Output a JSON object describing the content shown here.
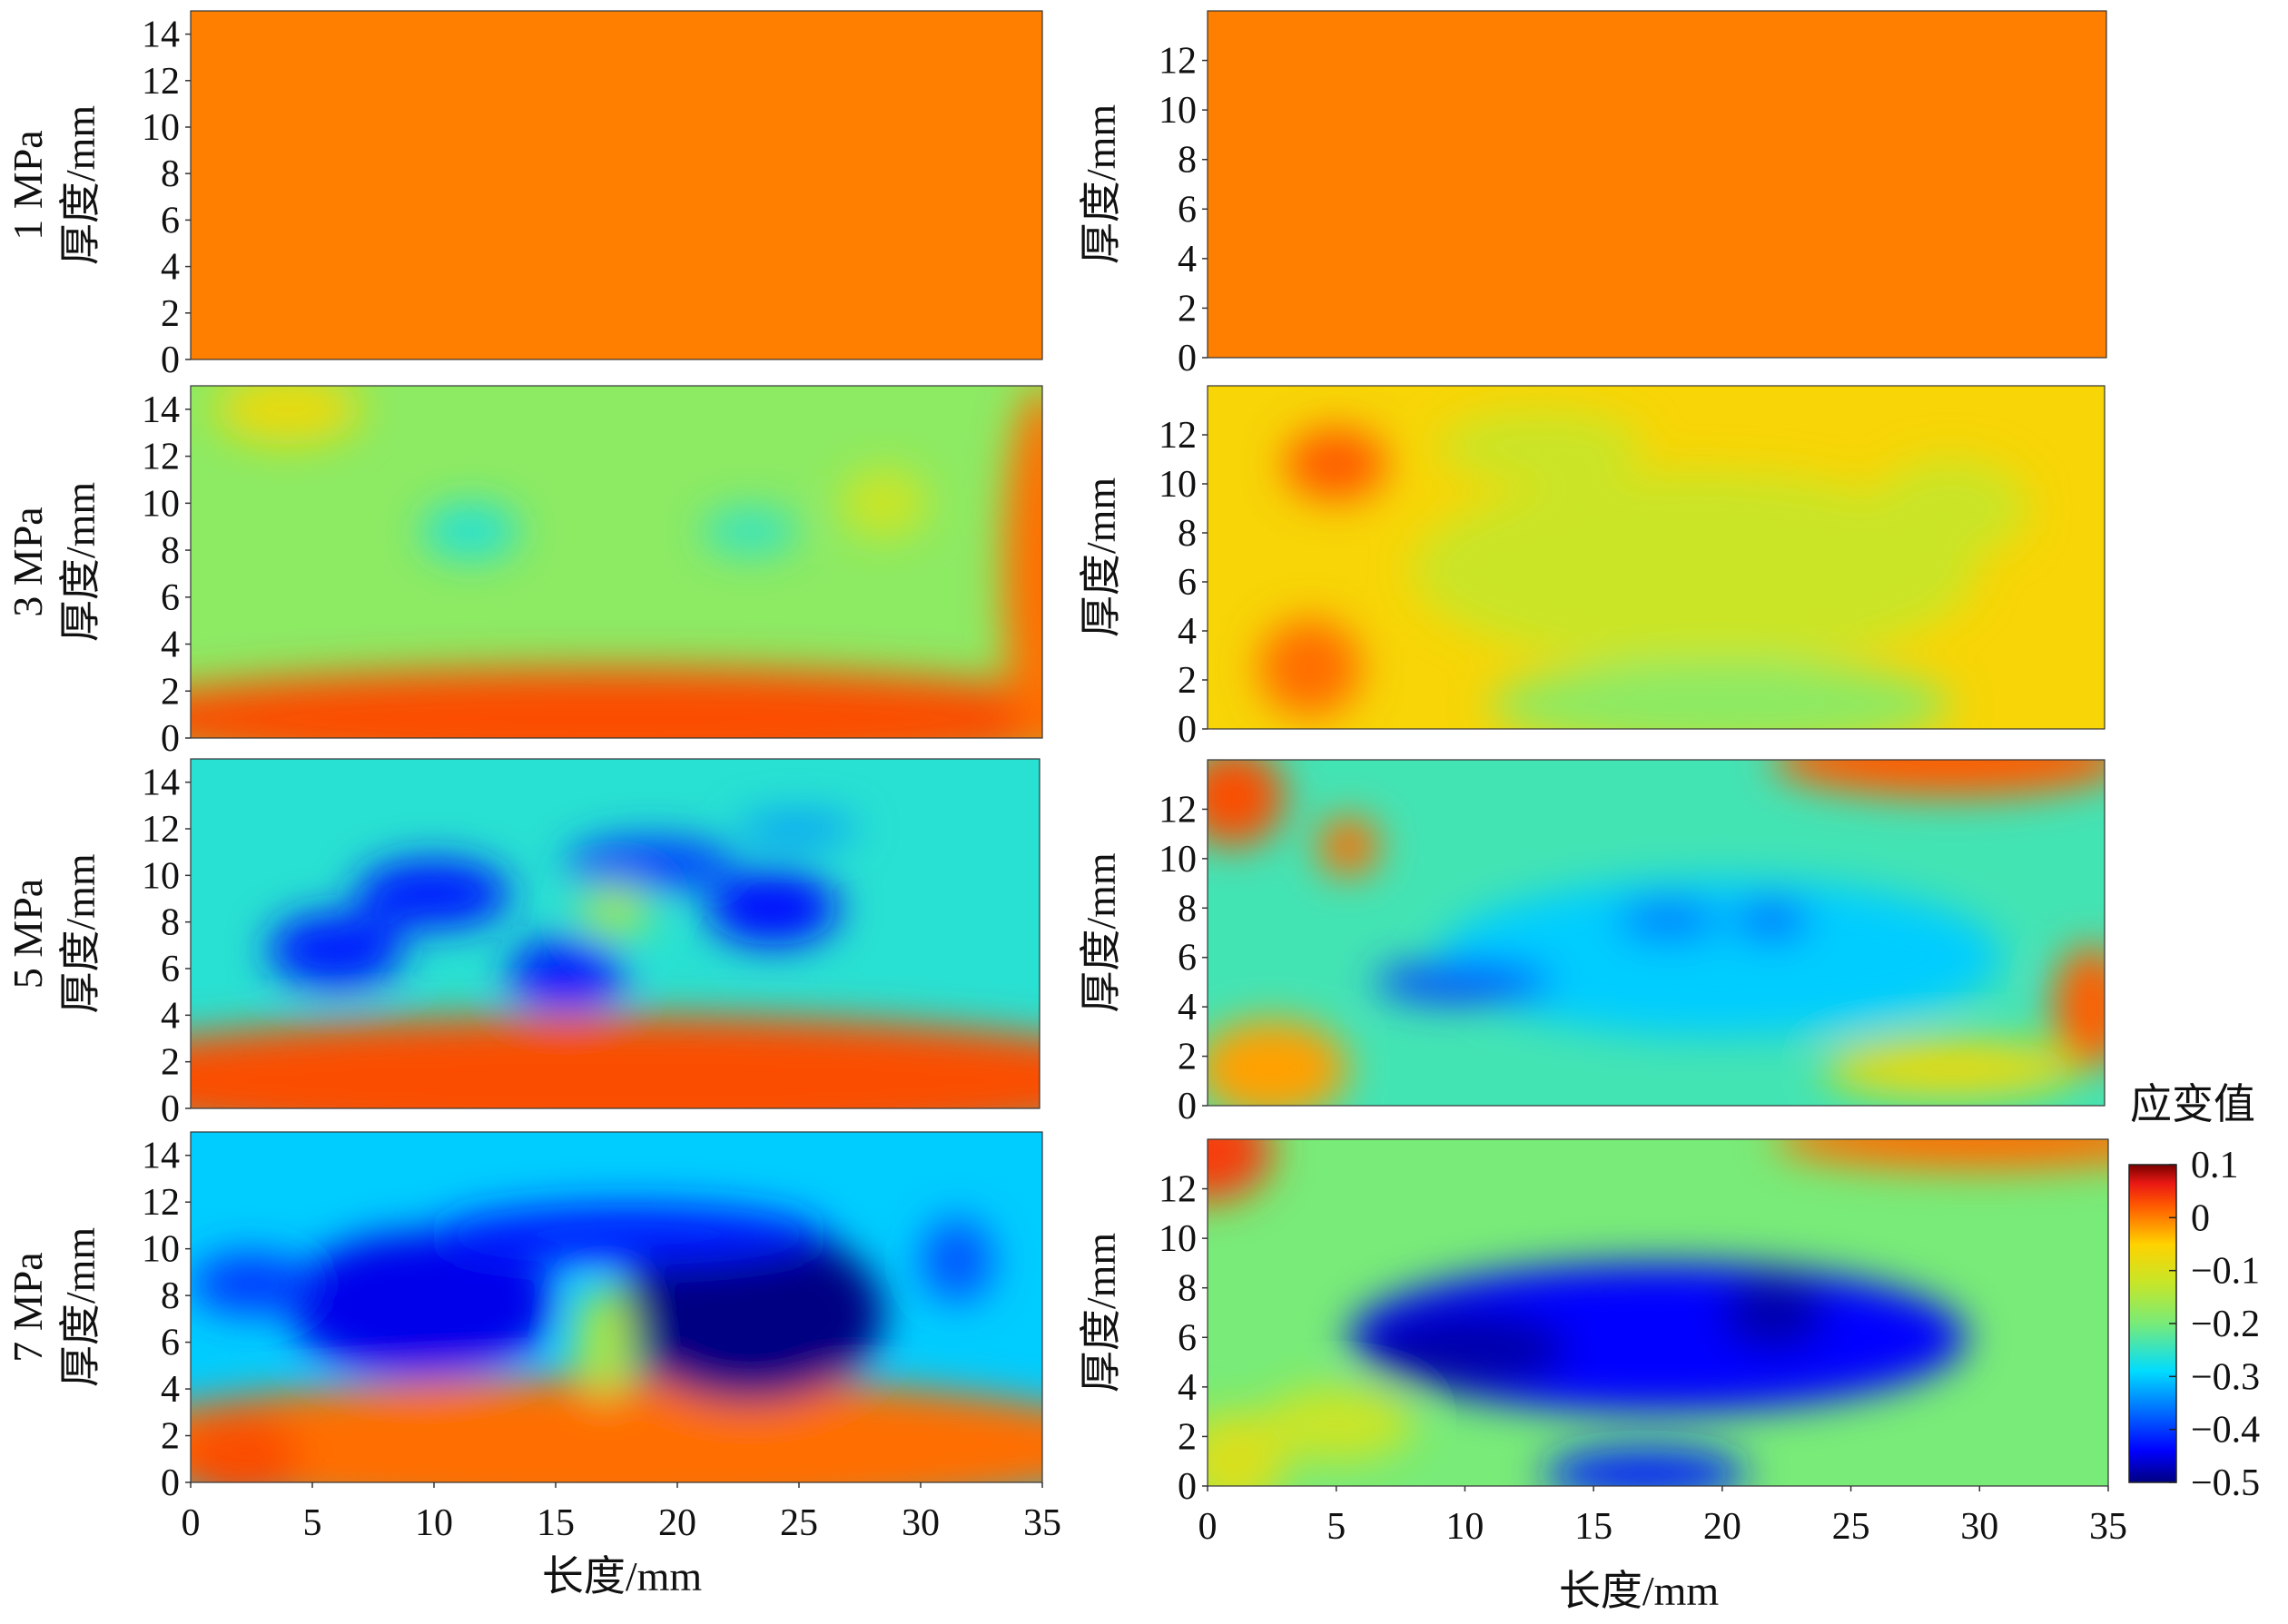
{
  "chart_data": {
    "type": "heatmap",
    "pressure_labels": [
      "1 MPa",
      "3 MPa",
      "5 MPa",
      "7 MPa"
    ],
    "ylabel": "厚度/mm",
    "xlabel": "长度/mm",
    "xlim": [
      0,
      35
    ],
    "x_ticks": [
      "0",
      "5",
      "10",
      "15",
      "20",
      "25",
      "30",
      "35"
    ],
    "left_y_ticks": [
      "0",
      "2",
      "4",
      "6",
      "8",
      "10",
      "12",
      "14"
    ],
    "left_ylim": [
      0,
      15
    ],
    "right_y_ticks": [
      "0",
      "2",
      "4",
      "6",
      "8",
      "10",
      "12"
    ],
    "right_ylim": [
      0,
      14
    ],
    "colorbar": {
      "label": "应变值",
      "ticks": [
        "0.1",
        "0",
        "−0.1",
        "−0.2",
        "−0.3",
        "−0.4",
        "−0.5"
      ],
      "range": [
        -0.5,
        0.1
      ]
    },
    "panels": [
      {
        "column": "left",
        "pressure": "1 MPa",
        "background_strain": 0.0,
        "blobs": []
      },
      {
        "column": "left",
        "pressure": "3 MPa",
        "background_strain": -0.18,
        "blobs": [
          {
            "x": 17.5,
            "y": 0.8,
            "rx": 22,
            "ry": 2.2,
            "v": 0.03
          },
          {
            "x": 35,
            "y": 7,
            "rx": 1.6,
            "ry": 8,
            "v": 0.01
          },
          {
            "x": 4,
            "y": 14,
            "rx": 3,
            "ry": 1.5,
            "v": -0.08
          },
          {
            "x": 11.5,
            "y": 8.8,
            "rx": 2,
            "ry": 1.2,
            "v": -0.26
          },
          {
            "x": 23,
            "y": 8.8,
            "rx": 2,
            "ry": 1,
            "v": -0.25
          },
          {
            "x": 28.5,
            "y": 10,
            "rx": 1.8,
            "ry": 1.5,
            "v": -0.12
          }
        ]
      },
      {
        "column": "left",
        "pressure": "5 MPa",
        "background_strain": -0.26,
        "blobs": [
          {
            "x": 17.5,
            "y": 1.2,
            "rx": 24,
            "ry": 2.8,
            "v": 0.03
          },
          {
            "x": 6,
            "y": 6.8,
            "rx": 2.8,
            "ry": 1.6,
            "v": -0.42
          },
          {
            "x": 10,
            "y": 9.2,
            "rx": 3.2,
            "ry": 1.5,
            "v": -0.42
          },
          {
            "x": 15.5,
            "y": 5.8,
            "rx": 2.4,
            "ry": 1.5,
            "v": -0.42
          },
          {
            "x": 19,
            "y": 10.5,
            "rx": 3.5,
            "ry": 1.1,
            "v": -0.4
          },
          {
            "x": 24,
            "y": 8.6,
            "rx": 2.7,
            "ry": 1.6,
            "v": -0.43
          },
          {
            "x": 17.5,
            "y": 8.5,
            "rx": 1.5,
            "ry": 1.2,
            "v": -0.17
          },
          {
            "x": 25,
            "y": 12,
            "rx": 2.5,
            "ry": 0.6,
            "v": -0.34
          }
        ]
      },
      {
        "column": "left",
        "pressure": "7 MPa",
        "background_strain": -0.3,
        "blobs": [
          {
            "x": 17.5,
            "y": 1.5,
            "rx": 22,
            "ry": 3,
            "v": 0.01
          },
          {
            "x": 2,
            "y": 1,
            "rx": 2.5,
            "ry": 2,
            "v": 0.03
          },
          {
            "x": 9.5,
            "y": 7.6,
            "rx": 5.5,
            "ry": 3.1,
            "v": -0.45
          },
          {
            "x": 23,
            "y": 7.2,
            "rx": 5.5,
            "ry": 3.8,
            "v": -0.5
          },
          {
            "x": 18,
            "y": 10.6,
            "rx": 8,
            "ry": 1.3,
            "v": -0.42
          },
          {
            "x": 2.5,
            "y": 8.5,
            "rx": 2.5,
            "ry": 1.3,
            "v": -0.4
          },
          {
            "x": 31.5,
            "y": 9.5,
            "rx": 1.5,
            "ry": 1.8,
            "v": -0.38
          },
          {
            "x": 17,
            "y": 6,
            "rx": 1.2,
            "ry": 2.4,
            "v": -0.15
          }
        ]
      },
      {
        "column": "right",
        "pressure": "1 MPa",
        "background_strain": 0.0,
        "blobs": []
      },
      {
        "column": "right",
        "pressure": "3 MPa",
        "background_strain": -0.06,
        "blobs": [
          {
            "x": 19,
            "y": 6.5,
            "rx": 11,
            "ry": 4,
            "v": -0.12
          },
          {
            "x": 20,
            "y": 1,
            "rx": 9,
            "ry": 1.8,
            "v": -0.18
          },
          {
            "x": 13,
            "y": 11.5,
            "rx": 4,
            "ry": 1.5,
            "v": -0.12
          },
          {
            "x": 29,
            "y": 9,
            "rx": 3,
            "ry": 2,
            "v": -0.12
          },
          {
            "x": 5,
            "y": 10.8,
            "rx": 2,
            "ry": 1.5,
            "v": 0.02
          },
          {
            "x": 4,
            "y": 2.5,
            "rx": 2,
            "ry": 2,
            "v": 0.01
          }
        ]
      },
      {
        "column": "right",
        "pressure": "5 MPa",
        "background_strain": -0.24,
        "blobs": [
          {
            "x": 20,
            "y": 6,
            "rx": 11,
            "ry": 3.2,
            "v": -0.3
          },
          {
            "x": 10,
            "y": 5,
            "rx": 3.5,
            "ry": 0.8,
            "v": -0.4
          },
          {
            "x": 18,
            "y": 7.5,
            "rx": 2,
            "ry": 0.8,
            "v": -0.36
          },
          {
            "x": 22,
            "y": 7.5,
            "rx": 1.5,
            "ry": 0.8,
            "v": -0.37
          },
          {
            "x": 1,
            "y": 12.5,
            "rx": 2,
            "ry": 2,
            "v": 0.03
          },
          {
            "x": 5.5,
            "y": 10.5,
            "rx": 1.2,
            "ry": 1.2,
            "v": 0.01
          },
          {
            "x": 2.5,
            "y": 1.5,
            "rx": 3,
            "ry": 2,
            "v": -0.02
          },
          {
            "x": 34.5,
            "y": 4,
            "rx": 1.5,
            "ry": 2.5,
            "v": 0.02
          },
          {
            "x": 29,
            "y": 1.5,
            "rx": 5,
            "ry": 1.2,
            "v": -0.08
          },
          {
            "x": 29,
            "y": 14,
            "rx": 7,
            "ry": 1.5,
            "v": 0.02
          }
        ]
      },
      {
        "column": "right",
        "pressure": "7 MPa",
        "background_strain": -0.2,
        "blobs": [
          {
            "x": 17.5,
            "y": 6,
            "rx": 12,
            "ry": 3,
            "v": -0.44
          },
          {
            "x": 10,
            "y": 5.5,
            "rx": 4,
            "ry": 1.6,
            "v": -0.48
          },
          {
            "x": 22,
            "y": 7,
            "rx": 2,
            "ry": 1.5,
            "v": -0.48
          },
          {
            "x": 17,
            "y": 0.5,
            "rx": 4,
            "ry": 1,
            "v": -0.42
          },
          {
            "x": 0,
            "y": 13.5,
            "rx": 2.5,
            "ry": 2,
            "v": 0.04
          },
          {
            "x": 30,
            "y": 14,
            "rx": 8,
            "ry": 1.2,
            "v": 0.01
          },
          {
            "x": 5,
            "y": 2.5,
            "rx": 3,
            "ry": 1.5,
            "v": -0.12
          },
          {
            "x": 1,
            "y": 1,
            "rx": 2,
            "ry": 2,
            "v": -0.1
          }
        ]
      }
    ]
  }
}
